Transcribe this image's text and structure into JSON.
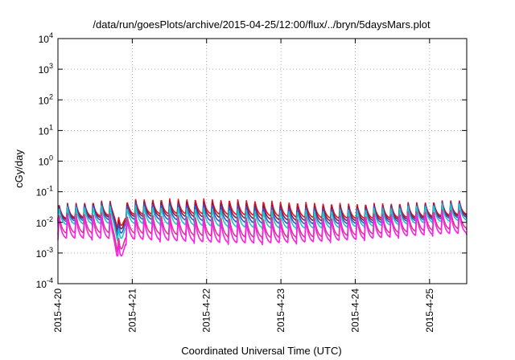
{
  "chart_data": {
    "type": "line",
    "title": "/data/run/goesPlots/archive/2015-04-25/12:00/flux/../bryn/5daysMars.plot",
    "xlabel": "Coordinated Universal Time (UTC)",
    "ylabel": "cGy/day",
    "yscale": "log",
    "ylim": [
      0.0001,
      10000
    ],
    "xlim": [
      "2015-04-20T00:00",
      "2015-04-25T12:00"
    ],
    "grid": true,
    "legend": "none",
    "x_tick_labels": [
      "2015-4-20",
      "2015-4-21",
      "2015-4-22",
      "2015-4-23",
      "2015-4-24",
      "2015-4-25"
    ],
    "y_ticks": [
      {
        "base": "10",
        "exp": "-4"
      },
      {
        "base": "10",
        "exp": "-3"
      },
      {
        "base": "10",
        "exp": "-2"
      },
      {
        "base": "10",
        "exp": "-1"
      },
      {
        "base": "10",
        "exp": "0"
      },
      {
        "base": "10",
        "exp": "1"
      },
      {
        "base": "10",
        "exp": "2"
      },
      {
        "base": "10",
        "exp": "3"
      },
      {
        "base": "10",
        "exp": "4"
      }
    ],
    "cycle_period_hours": 2.75,
    "series": [
      {
        "color": "#e8141e",
        "peak": 0.04,
        "trough": 0.012
      },
      {
        "color": "#8b1a3a",
        "peak": 0.035,
        "trough": 0.01
      },
      {
        "color": "#3a4fd8",
        "peak": 0.03,
        "trough": 0.008
      },
      {
        "color": "#1fc6c6",
        "peak": 0.025,
        "trough": 0.006
      },
      {
        "color": "#d63a8a",
        "peak": 0.015,
        "trough": 0.003
      },
      {
        "color": "#ff1ee6",
        "peak": 0.012,
        "trough": 0.002
      }
    ],
    "anomaly": {
      "date": "2015-04-20T20:00",
      "min_value": 0.0008
    }
  }
}
